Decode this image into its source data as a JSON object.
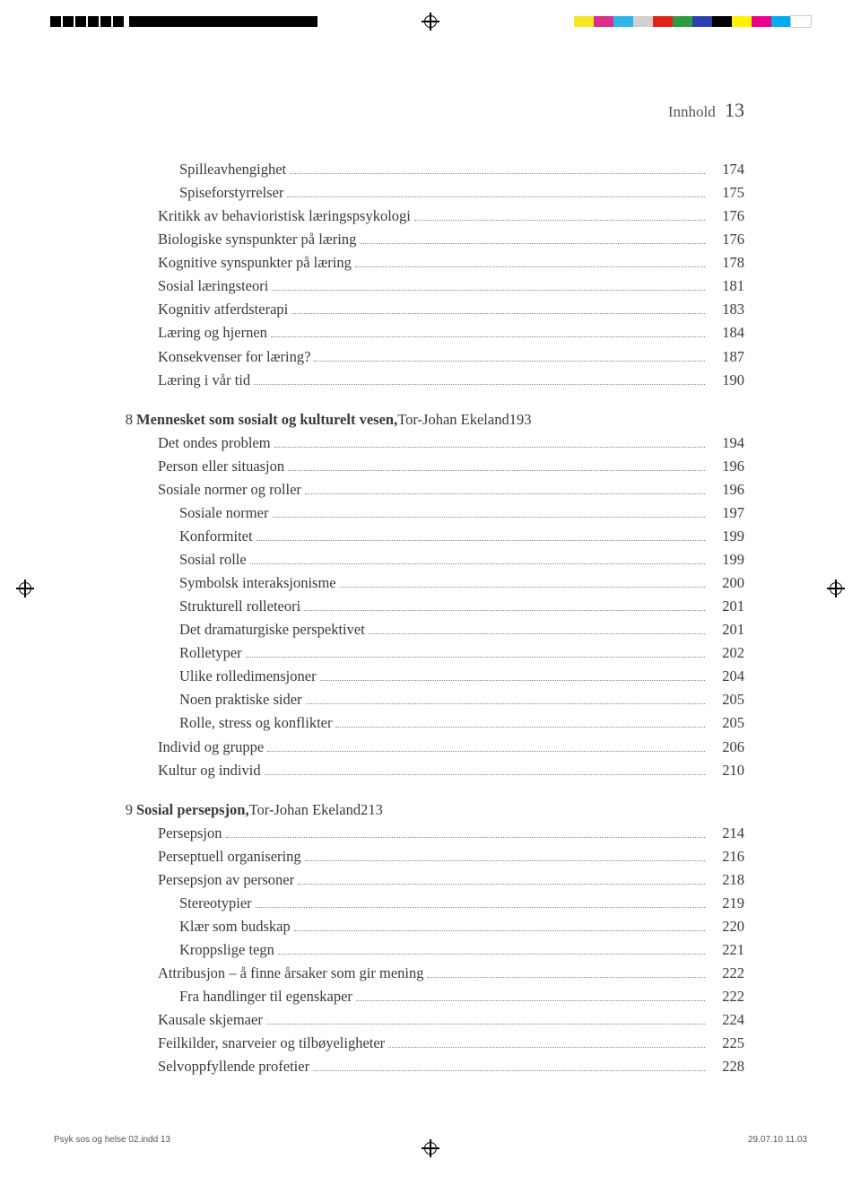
{
  "registration": {
    "color_bar": [
      "#f5e622",
      "#d9318a",
      "#2fb6e8",
      "#d0d0d0",
      "#e2231a",
      "#2e9b44",
      "#2b3fb0",
      "#000000",
      "#fff200",
      "#ec008c",
      "#00aeef",
      "#ffffff"
    ]
  },
  "running_head": {
    "label": "Innhold",
    "page": "13"
  },
  "toc": [
    {
      "type": "entry",
      "indent": 2,
      "label": "Spilleavhengighet",
      "page": "174"
    },
    {
      "type": "entry",
      "indent": 2,
      "label": "Spiseforstyrrelser",
      "page": "175"
    },
    {
      "type": "entry",
      "indent": 1,
      "label": "Kritikk av behavioristisk læringspsykologi",
      "page": "176"
    },
    {
      "type": "entry",
      "indent": 1,
      "label": "Biologiske synspunkter på læring",
      "page": "176"
    },
    {
      "type": "entry",
      "indent": 1,
      "label": "Kognitive synspunkter på læring",
      "page": "178"
    },
    {
      "type": "entry",
      "indent": 1,
      "label": "Sosial læringsteori",
      "page": "181"
    },
    {
      "type": "entry",
      "indent": 1,
      "label": "Kognitiv atferdsterapi",
      "page": "183"
    },
    {
      "type": "entry",
      "indent": 1,
      "label": "Læring og hjernen",
      "page": "184"
    },
    {
      "type": "entry",
      "indent": 1,
      "label": "Konsekvenser for læring?",
      "page": "187"
    },
    {
      "type": "entry",
      "indent": 1,
      "label": "Læring i vår tid",
      "page": "190"
    },
    {
      "type": "chapter",
      "num": "8",
      "title": "Mennesket som sosialt og kulturelt vesen,",
      "author": " Tor-Johan Ekeland",
      "page": "193"
    },
    {
      "type": "entry",
      "indent": 1,
      "label": "Det ondes problem",
      "page": "194"
    },
    {
      "type": "entry",
      "indent": 1,
      "label": "Person eller situasjon",
      "page": "196"
    },
    {
      "type": "entry",
      "indent": 1,
      "label": "Sosiale normer og roller",
      "page": "196"
    },
    {
      "type": "entry",
      "indent": 2,
      "label": "Sosiale normer",
      "page": "197"
    },
    {
      "type": "entry",
      "indent": 2,
      "label": "Konformitet",
      "page": "199"
    },
    {
      "type": "entry",
      "indent": 2,
      "label": "Sosial rolle",
      "page": "199"
    },
    {
      "type": "entry",
      "indent": 2,
      "label": "Symbolsk interaksjonisme",
      "page": "200"
    },
    {
      "type": "entry",
      "indent": 2,
      "label": "Strukturell rolleteori",
      "page": "201"
    },
    {
      "type": "entry",
      "indent": 2,
      "label": "Det dramaturgiske perspektivet",
      "page": "201"
    },
    {
      "type": "entry",
      "indent": 2,
      "label": "Rolletyper",
      "page": "202"
    },
    {
      "type": "entry",
      "indent": 2,
      "label": "Ulike rolledimensjoner",
      "page": "204"
    },
    {
      "type": "entry",
      "indent": 2,
      "label": "Noen praktiske sider",
      "page": "205"
    },
    {
      "type": "entry",
      "indent": 2,
      "label": "Rolle, stress og konflikter",
      "page": "205"
    },
    {
      "type": "entry",
      "indent": 1,
      "label": "Individ og gruppe",
      "page": "206"
    },
    {
      "type": "entry",
      "indent": 1,
      "label": "Kultur og individ",
      "page": "210"
    },
    {
      "type": "chapter",
      "num": "9",
      "title": "Sosial persepsjon,",
      "author": " Tor-Johan Ekeland",
      "page": "213"
    },
    {
      "type": "entry",
      "indent": 1,
      "label": "Persepsjon",
      "page": "214"
    },
    {
      "type": "entry",
      "indent": 1,
      "label": "Perseptuell organisering",
      "page": "216"
    },
    {
      "type": "entry",
      "indent": 1,
      "label": "Persepsjon av personer",
      "page": "218"
    },
    {
      "type": "entry",
      "indent": 2,
      "label": "Stereotypier",
      "page": "219"
    },
    {
      "type": "entry",
      "indent": 2,
      "label": "Klær som budskap",
      "page": "220"
    },
    {
      "type": "entry",
      "indent": 2,
      "label": "Kroppslige tegn",
      "page": "221"
    },
    {
      "type": "entry",
      "indent": 1,
      "label": "Attribusjon – å finne årsaker som gir mening",
      "page": "222"
    },
    {
      "type": "entry",
      "indent": 2,
      "label": "Fra handlinger til egenskaper",
      "page": "222"
    },
    {
      "type": "entry",
      "indent": 1,
      "label": "Kausale skjemaer",
      "page": "224"
    },
    {
      "type": "entry",
      "indent": 1,
      "label": "Feilkilder, snarveier og tilbøyeligheter",
      "page": "225"
    },
    {
      "type": "entry",
      "indent": 1,
      "label": "Selvoppfyllende profetier",
      "page": "228"
    }
  ],
  "footer": {
    "slug_left": "Psyk sos og helse 02.indd   13",
    "slug_right": "29.07.10   11.03"
  }
}
